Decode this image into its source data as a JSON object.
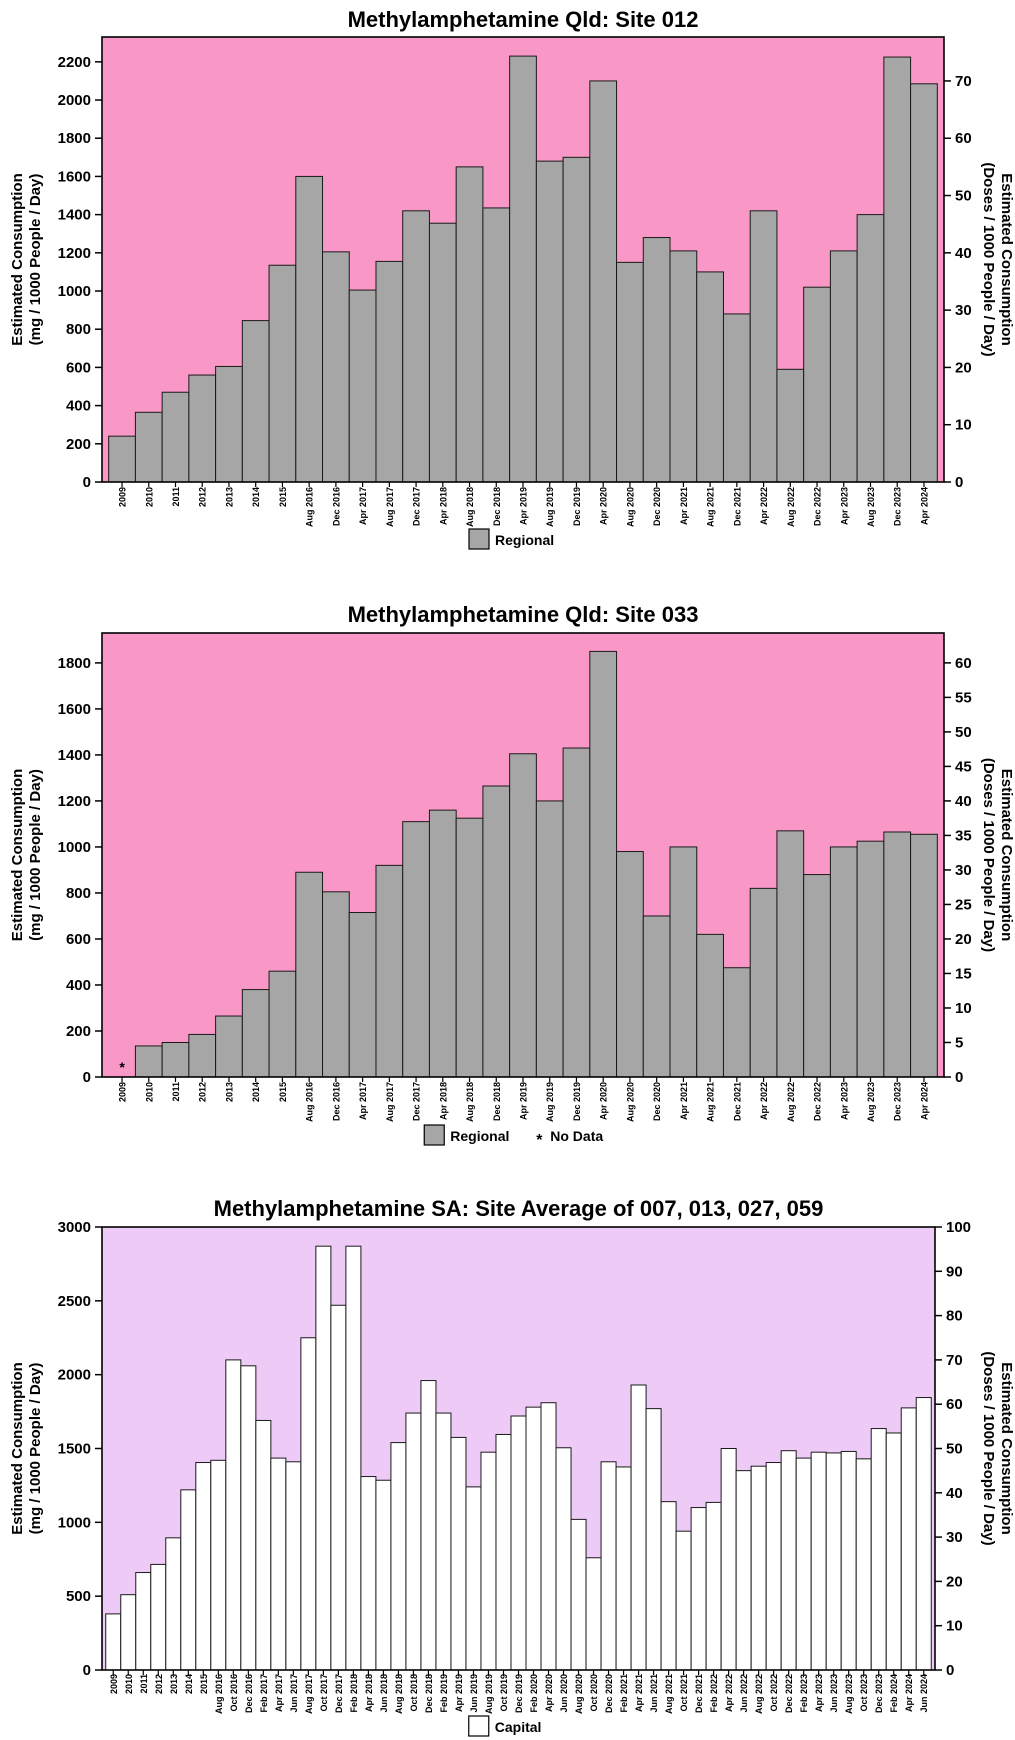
{
  "chart_data": [
    {
      "type": "bar",
      "title": "Methylamphetamine Qld: Site 012",
      "ylabel": "Estimated Consumption",
      "ylabel_sub": "(mg / 1000 People / Day)",
      "y2label": "Estimated Consumption",
      "y2label_sub": "(Doses / 1000 People / Day)",
      "ylim": [
        0,
        2330
      ],
      "yticks": [
        0,
        200,
        400,
        600,
        800,
        1000,
        1200,
        1400,
        1600,
        1800,
        2000,
        2200
      ],
      "y2lim": [
        0,
        77.67
      ],
      "y2ticks": [
        0,
        10,
        20,
        30,
        40,
        50,
        60,
        70
      ],
      "background_color": "#f998c6",
      "bar_color": "#a6a6a6",
      "categories": [
        "2009",
        "2010",
        "2011",
        "2012",
        "2013",
        "2014",
        "2015",
        "Aug 2016",
        "Dec 2016",
        "Apr 2017",
        "Aug 2017",
        "Dec 2017",
        "Apr 2018",
        "Aug 2018",
        "Dec 2018",
        "Apr 2019",
        "Aug 2019",
        "Dec 2019",
        "Apr 2020",
        "Aug 2020",
        "Dec 2020",
        "Apr 2021",
        "Aug 2021",
        "Dec 2021",
        "Apr 2022",
        "Aug 2022",
        "Dec 2022",
        "Apr 2023",
        "Aug 2023",
        "Dec 2023",
        "Apr 2024"
      ],
      "series": [
        {
          "name": "Regional",
          "values": [
            240,
            365,
            470,
            560,
            605,
            845,
            1135,
            1600,
            1205,
            1005,
            1155,
            1420,
            1355,
            1650,
            1435,
            2230,
            1680,
            1700,
            2100,
            1150,
            1280,
            1210,
            1100,
            880,
            1420,
            590,
            1020,
            1210,
            1400,
            2225,
            2085
          ]
        }
      ],
      "no_data_categories": [],
      "legend": [
        {
          "label": "Regional",
          "swatch": "#a6a6a6"
        }
      ],
      "legend_position": "bottom-center",
      "grid": false
    },
    {
      "type": "bar",
      "title": "Methylamphetamine Qld: Site 033",
      "ylabel": "Estimated Consumption",
      "ylabel_sub": "(mg / 1000 People / Day)",
      "y2label": "Estimated Consumption",
      "y2label_sub": "(Doses / 1000 People / Day)",
      "ylim": [
        0,
        1930
      ],
      "yticks": [
        0,
        200,
        400,
        600,
        800,
        1000,
        1200,
        1400,
        1600,
        1800
      ],
      "y2lim": [
        0,
        64.33
      ],
      "y2ticks": [
        0,
        5,
        10,
        15,
        20,
        25,
        30,
        35,
        40,
        45,
        50,
        55,
        60
      ],
      "background_color": "#f998c6",
      "bar_color": "#a6a6a6",
      "categories": [
        "2009",
        "2010",
        "2011",
        "2012",
        "2013",
        "2014",
        "2015",
        "Aug 2016",
        "Dec 2016",
        "Apr 2017",
        "Aug 2017",
        "Dec 2017",
        "Apr 2018",
        "Aug 2018",
        "Dec 2018",
        "Apr 2019",
        "Aug 2019",
        "Dec 2019",
        "Apr 2020",
        "Aug 2020",
        "Dec 2020",
        "Apr 2021",
        "Aug 2021",
        "Dec 2021",
        "Apr 2022",
        "Aug 2022",
        "Dec 2022",
        "Apr 2023",
        "Aug 2023",
        "Dec 2023",
        "Apr 2024"
      ],
      "series": [
        {
          "name": "Regional",
          "values": [
            null,
            135,
            150,
            185,
            265,
            380,
            460,
            890,
            805,
            715,
            920,
            1110,
            1160,
            1125,
            1265,
            1405,
            1200,
            1430,
            1850,
            980,
            700,
            1000,
            620,
            475,
            820,
            1070,
            880,
            1000,
            1025,
            1065,
            1055
          ]
        }
      ],
      "no_data_categories": [
        "2009"
      ],
      "legend": [
        {
          "label": "Regional",
          "swatch": "#a6a6a6"
        },
        {
          "label": "No Data",
          "symbol": "*"
        }
      ],
      "legend_position": "bottom-center",
      "grid": false
    },
    {
      "type": "bar",
      "title": "Methylamphetamine SA: Site Average of 007, 013, 027, 059",
      "ylabel": "Estimated Consumption",
      "ylabel_sub": "(mg / 1000 People / Day)",
      "y2label": "Estimated Consumption",
      "y2label_sub": "(Doses / 1000 People / Day)",
      "ylim": [
        0,
        3000
      ],
      "yticks": [
        0,
        500,
        1000,
        1500,
        2000,
        2500,
        3000
      ],
      "y2lim": [
        0,
        100
      ],
      "y2ticks": [
        0,
        10,
        20,
        30,
        40,
        50,
        60,
        70,
        80,
        90,
        100
      ],
      "background_color": "#eecaf6",
      "bar_color": "#ffffff",
      "categories": [
        "2009",
        "2010",
        "2011",
        "2012",
        "2013",
        "2014",
        "2015",
        "Aug 2016",
        "Oct 2016",
        "Dec 2016",
        "Feb 2017",
        "Apr 2017",
        "Jun 2017",
        "Aug 2017",
        "Oct 2017",
        "Dec 2017",
        "Feb 2018",
        "Apr 2018",
        "Jun 2018",
        "Aug 2018",
        "Oct 2018",
        "Dec 2018",
        "Feb 2019",
        "Apr 2019",
        "Jun 2019",
        "Aug 2019",
        "Oct 2019",
        "Dec 2019",
        "Feb 2020",
        "Apr 2020",
        "Jun 2020",
        "Aug 2020",
        "Oct 2020",
        "Dec 2020",
        "Feb 2021",
        "Apr 2021",
        "Jun 2021",
        "Aug 2021",
        "Oct 2021",
        "Dec 2021",
        "Feb 2022",
        "Apr 2022",
        "Jun 2022",
        "Aug 2022",
        "Oct 2022",
        "Dec 2022",
        "Feb 2023",
        "Apr 2023",
        "Jun 2023",
        "Aug 2023",
        "Oct 2023",
        "Dec 2023",
        "Feb 2024",
        "Apr 2024",
        "Jun 2024"
      ],
      "series": [
        {
          "name": "Capital",
          "values": [
            380,
            510,
            660,
            715,
            895,
            1220,
            1405,
            1420,
            2100,
            2060,
            1690,
            1435,
            1410,
            2250,
            2870,
            2470,
            2870,
            1310,
            1285,
            1540,
            1740,
            1960,
            1740,
            1575,
            1240,
            1475,
            1595,
            1720,
            1780,
            1810,
            1505,
            1020,
            760,
            1410,
            1375,
            1930,
            1770,
            1140,
            940,
            1100,
            1135,
            1500,
            1350,
            1380,
            1405,
            1485,
            1435,
            1475,
            1470,
            1480,
            1430,
            1635,
            1605,
            1775,
            1845
          ]
        }
      ],
      "no_data_categories": [],
      "legend": [
        {
          "label": "Capital",
          "swatch": "#ffffff"
        }
      ],
      "legend_position": "bottom-center",
      "grid": false
    }
  ]
}
